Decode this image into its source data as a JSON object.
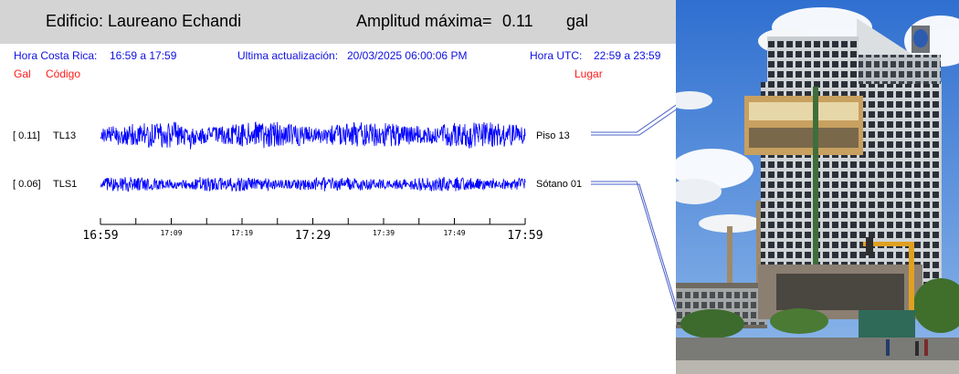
{
  "header": {
    "building_label": "Edificio: Laureano Echandi",
    "amplitude_label": "Amplitud máxima=",
    "amplitude_value": "0.11",
    "amplitude_unit": "gal"
  },
  "info": {
    "local_time_label": "Hora Costa Rica:",
    "local_time_range": "16:59 a 17:59",
    "update_label": "Ultima actualización:",
    "update_value": "20/03/2025 06:00:06 PM",
    "utc_label": "Hora UTC:",
    "utc_range": "22:59 a 23:59"
  },
  "columns": {
    "gal": "Gal",
    "code": "Código",
    "place": "Lugar"
  },
  "chart_data": {
    "type": "line",
    "x_unit": "hora local",
    "xlim": [
      "16:59",
      "17:59"
    ],
    "major_ticks": [
      "16:59",
      "17:29",
      "17:59"
    ],
    "minor_ticks": [
      "17:09",
      "17:19",
      "17:39",
      "17:49"
    ],
    "series": [
      {
        "gal_label": "[  0.11]",
        "code": "TL13",
        "place": "Piso 13",
        "peak_gal": 0.11,
        "color": "#0000ff"
      },
      {
        "gal_label": "[  0.06]",
        "code": "TLS1",
        "place": "Sótano 01",
        "peak_gal": 0.06,
        "color": "#0000ff"
      }
    ]
  },
  "colors": {
    "header_bg": "#d4d4d4",
    "info_text": "#1010e0",
    "column_text": "#ff1a1a",
    "trace": "#0000ff"
  }
}
